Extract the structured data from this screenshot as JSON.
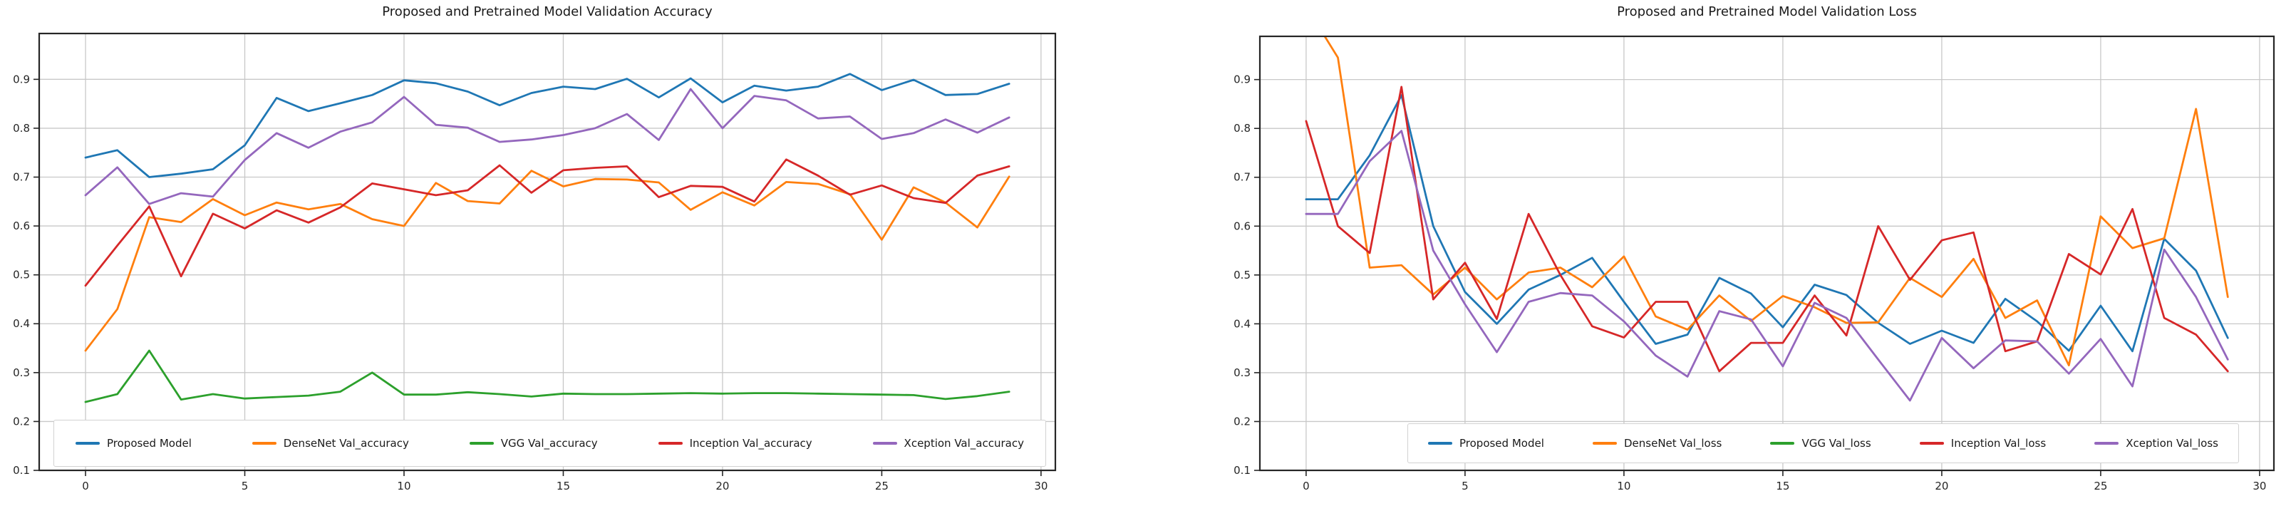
{
  "figure": {
    "background": "#ffffff",
    "grid_color": "#c8c8c8",
    "spine_color": "#262626",
    "tick_label_color": "#262626"
  },
  "chart_data": [
    {
      "type": "line",
      "title": "Proposed and Pretrained Model Validation Accuracy",
      "xlabel": "",
      "ylabel": "",
      "grid": true,
      "legend_position": "lower center",
      "x": [
        0,
        1,
        2,
        3,
        4,
        5,
        6,
        7,
        8,
        9,
        10,
        11,
        12,
        13,
        14,
        15,
        16,
        17,
        18,
        19,
        20,
        21,
        22,
        23,
        24,
        25,
        26,
        27,
        28,
        29
      ],
      "xlim": [
        -1.455,
        30.45
      ],
      "ylim": [
        0.1,
        0.9938
      ],
      "xticks": {
        "values": [
          0,
          5,
          10,
          15,
          20,
          25,
          30
        ],
        "labels": [
          "0",
          "5",
          "10",
          "15",
          "20",
          "25",
          "30"
        ]
      },
      "yticks": {
        "values": [
          0.1,
          0.2,
          0.3,
          0.4,
          0.5,
          0.6,
          0.7,
          0.8,
          0.9
        ],
        "labels": [
          "0.1",
          "0.2",
          "0.3",
          "0.4",
          "0.5",
          "0.6",
          "0.7",
          "0.8",
          "0.9"
        ]
      },
      "series": [
        {
          "name": "Proposed Model",
          "color": "#1f77b4",
          "values": [
            0.74,
            0.755,
            0.7,
            0.707,
            0.716,
            0.765,
            0.862,
            0.835,
            0.851,
            0.868,
            0.898,
            0.892,
            0.875,
            0.847,
            0.872,
            0.885,
            0.88,
            0.901,
            0.863,
            0.902,
            0.853,
            0.887,
            0.877,
            0.885,
            0.911,
            0.878,
            0.899,
            0.868,
            0.87,
            0.891
          ]
        },
        {
          "name": "DenseNet Val_accuracy",
          "color": "#ff7f0e",
          "values": [
            0.345,
            0.43,
            0.618,
            0.608,
            0.655,
            0.622,
            0.648,
            0.634,
            0.645,
            0.614,
            0.6,
            0.688,
            0.651,
            0.646,
            0.713,
            0.681,
            0.696,
            0.695,
            0.689,
            0.633,
            0.669,
            0.642,
            0.69,
            0.686,
            0.665,
            0.572,
            0.679,
            0.648,
            0.597,
            0.701
          ]
        },
        {
          "name": "VGG Val_accuracy",
          "color": "#2ca02c",
          "values": [
            0.24,
            0.256,
            0.345,
            0.245,
            0.256,
            0.247,
            0.25,
            0.253,
            0.261,
            0.3,
            0.255,
            0.255,
            0.26,
            0.256,
            0.251,
            0.257,
            0.256,
            0.256,
            0.257,
            0.258,
            0.257,
            0.258,
            0.258,
            0.257,
            0.256,
            0.255,
            0.254,
            0.246,
            0.252,
            0.261
          ]
        },
        {
          "name": "Inception Val_accuracy",
          "color": "#d62728",
          "values": [
            0.478,
            0.56,
            0.64,
            0.497,
            0.625,
            0.595,
            0.632,
            0.607,
            0.638,
            0.687,
            0.675,
            0.663,
            0.673,
            0.724,
            0.668,
            0.714,
            0.719,
            0.722,
            0.659,
            0.682,
            0.68,
            0.65,
            0.736,
            0.703,
            0.664,
            0.683,
            0.657,
            0.647,
            0.703,
            0.722
          ]
        },
        {
          "name": "Xception Val_accuracy",
          "color": "#9467bd",
          "values": [
            0.663,
            0.72,
            0.645,
            0.667,
            0.66,
            0.735,
            0.79,
            0.76,
            0.793,
            0.812,
            0.864,
            0.807,
            0.801,
            0.772,
            0.777,
            0.786,
            0.8,
            0.829,
            0.776,
            0.88,
            0.8,
            0.866,
            0.857,
            0.82,
            0.824,
            0.778,
            0.79,
            0.818,
            0.791,
            0.822
          ]
        }
      ]
    },
    {
      "type": "line",
      "title": "Proposed and Pretrained Model Validation Loss",
      "xlabel": "",
      "ylabel": "",
      "grid": true,
      "legend_position": "lower center",
      "x": [
        0,
        1,
        2,
        3,
        4,
        5,
        6,
        7,
        8,
        9,
        10,
        11,
        12,
        13,
        14,
        15,
        16,
        17,
        18,
        19,
        20,
        21,
        22,
        23,
        24,
        25,
        26,
        27,
        28,
        29
      ],
      "xlim": [
        -1.455,
        30.45
      ],
      "ylim": [
        0.1,
        0.9885
      ],
      "xticks": {
        "values": [
          0,
          5,
          10,
          15,
          20,
          25,
          30
        ],
        "labels": [
          "0",
          "5",
          "10",
          "15",
          "20",
          "25",
          "30"
        ]
      },
      "yticks": {
        "values": [
          0.1,
          0.2,
          0.3,
          0.4,
          0.5,
          0.6,
          0.7,
          0.8,
          0.9
        ],
        "labels": [
          "0.1",
          "0.2",
          "0.3",
          "0.4",
          "0.5",
          "0.6",
          "0.7",
          "0.8",
          "0.9"
        ]
      },
      "series": [
        {
          "name": "Proposed Model",
          "color": "#1f77b4",
          "values": [
            0.655,
            0.655,
            0.745,
            0.868,
            0.6,
            0.465,
            0.4,
            0.47,
            0.5,
            0.535,
            0.445,
            0.359,
            0.378,
            0.494,
            0.462,
            0.393,
            0.48,
            0.459,
            0.402,
            0.359,
            0.386,
            0.361,
            0.451,
            0.405,
            0.345,
            0.437,
            0.344,
            0.574,
            0.509,
            0.371
          ]
        },
        {
          "name": "DenseNet Val_loss",
          "color": "#ff7f0e",
          "values": [
            1.05,
            0.945,
            0.515,
            0.52,
            0.46,
            0.515,
            0.45,
            0.505,
            0.515,
            0.475,
            0.538,
            0.415,
            0.388,
            0.458,
            0.406,
            0.457,
            0.434,
            0.402,
            0.403,
            0.494,
            0.455,
            0.533,
            0.412,
            0.448,
            0.315,
            0.62,
            0.555,
            0.575,
            0.84,
            0.455
          ]
        },
        {
          "name": "VGG Val_loss",
          "color": "#2ca02c",
          "values": [],
          "visible_in_plot": false,
          "note": "line lies above the visible y-range (off-chart); only legend entry is shown"
        },
        {
          "name": "Inception Val_loss",
          "color": "#d62728",
          "values": [
            0.815,
            0.6,
            0.545,
            0.885,
            0.45,
            0.525,
            0.41,
            0.625,
            0.5,
            0.395,
            0.372,
            0.445,
            0.445,
            0.303,
            0.361,
            0.361,
            0.458,
            0.376,
            0.6,
            0.49,
            0.571,
            0.587,
            0.344,
            0.364,
            0.543,
            0.501,
            0.635,
            0.412,
            0.378,
            0.303
          ]
        },
        {
          "name": "Xception Val_loss",
          "color": "#9467bd",
          "values": [
            0.625,
            0.625,
            0.733,
            0.795,
            0.55,
            0.44,
            0.342,
            0.445,
            0.463,
            0.458,
            0.405,
            0.335,
            0.292,
            0.426,
            0.409,
            0.313,
            0.443,
            0.412,
            0.327,
            0.243,
            0.371,
            0.309,
            0.366,
            0.364,
            0.298,
            0.369,
            0.272,
            0.552,
            0.455,
            0.327
          ]
        }
      ]
    }
  ]
}
